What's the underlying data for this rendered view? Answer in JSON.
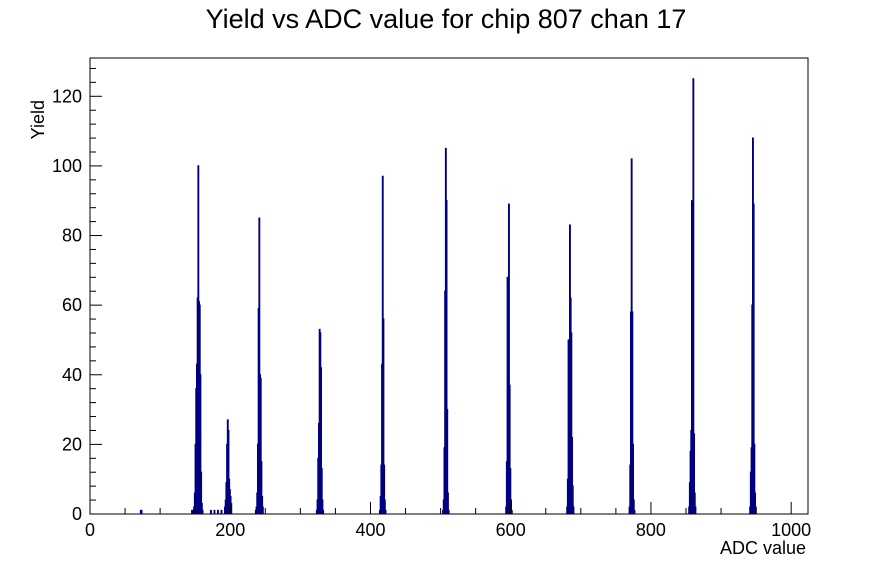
{
  "chart_data": {
    "type": "bar",
    "title": "Yield vs ADC value for chip 807 chan 17",
    "xlabel": "ADC value",
    "ylabel": "Yield",
    "xlim": [
      0,
      1024
    ],
    "ylim": [
      0,
      131
    ],
    "grid": false,
    "x_ticks": [
      0,
      200,
      400,
      600,
      800,
      1000
    ],
    "x_tick_labels": [
      "0",
      "200",
      "400",
      "600",
      "800",
      "1000"
    ],
    "y_ticks": [
      0,
      20,
      40,
      60,
      80,
      100,
      120
    ],
    "y_tick_labels": [
      "0",
      "20",
      "40",
      "60",
      "80",
      "100",
      "120"
    ],
    "line_color": "#000080",
    "bins": [
      [
        72,
        1
      ],
      [
        73,
        1
      ],
      [
        145,
        1
      ],
      [
        146,
        1
      ],
      [
        147,
        1
      ],
      [
        148,
        2
      ],
      [
        149,
        6
      ],
      [
        150,
        20
      ],
      [
        151,
        36
      ],
      [
        152,
        43
      ],
      [
        153,
        62
      ],
      [
        154,
        100
      ],
      [
        155,
        61
      ],
      [
        156,
        60
      ],
      [
        157,
        40
      ],
      [
        158,
        12
      ],
      [
        159,
        3
      ],
      [
        160,
        1
      ],
      [
        172,
        1
      ],
      [
        177,
        1
      ],
      [
        182,
        1
      ],
      [
        187,
        1
      ],
      [
        192,
        2
      ],
      [
        193,
        4
      ],
      [
        194,
        9
      ],
      [
        195,
        20
      ],
      [
        196,
        27
      ],
      [
        197,
        24
      ],
      [
        198,
        10
      ],
      [
        199,
        7
      ],
      [
        200,
        5
      ],
      [
        201,
        3
      ],
      [
        236,
        1
      ],
      [
        237,
        2
      ],
      [
        238,
        6
      ],
      [
        239,
        20
      ],
      [
        240,
        59
      ],
      [
        241,
        85
      ],
      [
        242,
        40
      ],
      [
        243,
        39
      ],
      [
        244,
        15
      ],
      [
        245,
        5
      ],
      [
        246,
        2
      ],
      [
        323,
        1
      ],
      [
        324,
        4
      ],
      [
        325,
        16
      ],
      [
        326,
        26
      ],
      [
        327,
        53
      ],
      [
        328,
        52
      ],
      [
        329,
        42
      ],
      [
        330,
        13
      ],
      [
        331,
        4
      ],
      [
        332,
        1
      ],
      [
        413,
        1
      ],
      [
        414,
        5
      ],
      [
        415,
        14
      ],
      [
        416,
        43
      ],
      [
        417,
        97
      ],
      [
        418,
        56
      ],
      [
        419,
        14
      ],
      [
        420,
        4
      ],
      [
        421,
        1
      ],
      [
        503,
        1
      ],
      [
        504,
        4
      ],
      [
        505,
        19
      ],
      [
        506,
        64
      ],
      [
        507,
        105
      ],
      [
        508,
        90
      ],
      [
        509,
        30
      ],
      [
        510,
        6
      ],
      [
        511,
        1
      ],
      [
        593,
        2
      ],
      [
        594,
        15
      ],
      [
        595,
        68
      ],
      [
        596,
        56
      ],
      [
        597,
        89
      ],
      [
        598,
        37
      ],
      [
        599,
        13
      ],
      [
        600,
        4
      ],
      [
        601,
        1
      ],
      [
        680,
        2
      ],
      [
        681,
        10
      ],
      [
        682,
        50
      ],
      [
        683,
        43
      ],
      [
        684,
        83
      ],
      [
        685,
        62
      ],
      [
        686,
        52
      ],
      [
        687,
        22
      ],
      [
        688,
        8
      ],
      [
        689,
        2
      ],
      [
        769,
        2
      ],
      [
        770,
        14
      ],
      [
        771,
        58
      ],
      [
        772,
        102
      ],
      [
        773,
        58
      ],
      [
        774,
        20
      ],
      [
        775,
        4
      ],
      [
        776,
        1
      ],
      [
        854,
        2
      ],
      [
        855,
        9
      ],
      [
        856,
        18
      ],
      [
        857,
        24
      ],
      [
        858,
        90
      ],
      [
        859,
        11
      ],
      [
        860,
        125
      ],
      [
        861,
        23
      ],
      [
        862,
        6
      ],
      [
        863,
        2
      ],
      [
        941,
        2
      ],
      [
        942,
        12
      ],
      [
        943,
        19
      ],
      [
        944,
        60
      ],
      [
        945,
        108
      ],
      [
        946,
        89
      ],
      [
        947,
        20
      ],
      [
        948,
        6
      ],
      [
        949,
        2
      ]
    ]
  }
}
